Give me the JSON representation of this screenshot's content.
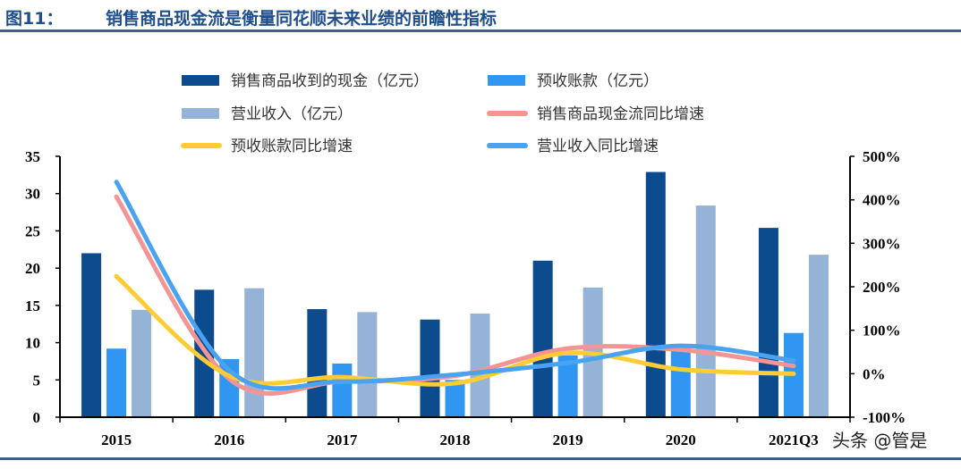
{
  "title": {
    "figure": "图11：",
    "text": "销售商品现金流是衡量同花顺未来业绩的前瞻性指标"
  },
  "watermark": "头条 @管是",
  "chart_data": {
    "type": "bar",
    "categories": [
      "2015",
      "2016",
      "2017",
      "2018",
      "2019",
      "2020",
      "2021Q3"
    ],
    "y_left": {
      "range": [
        0,
        35
      ],
      "ticks": [
        "0",
        "5",
        "10",
        "15",
        "20",
        "25",
        "30",
        "35"
      ]
    },
    "y_right": {
      "range": [
        -100,
        500
      ],
      "unit": "%",
      "ticks": [
        "-100%",
        "0%",
        "100%",
        "200%",
        "300%",
        "400%",
        "500%"
      ]
    },
    "grid": false,
    "legend_placement": "top",
    "bar_series": [
      {
        "name": "销售商品收到的现金（亿元）",
        "color": "#0b4b8e",
        "values": [
          22.0,
          17.1,
          14.5,
          13.1,
          21.0,
          32.9,
          25.4
        ]
      },
      {
        "name": "预收账款（亿元）",
        "color": "#2f96f2",
        "values": [
          9.2,
          7.8,
          7.2,
          5.0,
          8.3,
          9.5,
          11.3
        ]
      },
      {
        "name": "营业收入（亿元）",
        "color": "#95b3d7",
        "values": [
          14.4,
          17.3,
          14.1,
          13.9,
          17.4,
          28.4,
          21.8
        ]
      }
    ],
    "line_series": [
      {
        "name": "销售商品现金流同比增速",
        "color": "#f59494",
        "axis": "right",
        "values": [
          407,
          -12,
          -18,
          -5,
          58,
          55,
          18
        ]
      },
      {
        "name": "预收账款同比增速",
        "color": "#ffcc33",
        "axis": "right",
        "values": [
          224,
          -5,
          -8,
          -22,
          48,
          10,
          0
        ]
      },
      {
        "name": "营业收入同比增速",
        "color": "#4aa3f0",
        "axis": "right",
        "values": [
          441,
          8,
          -18,
          -2,
          25,
          64,
          30
        ]
      }
    ],
    "legend_order": [
      0,
      1,
      2,
      3,
      4,
      5
    ]
  }
}
